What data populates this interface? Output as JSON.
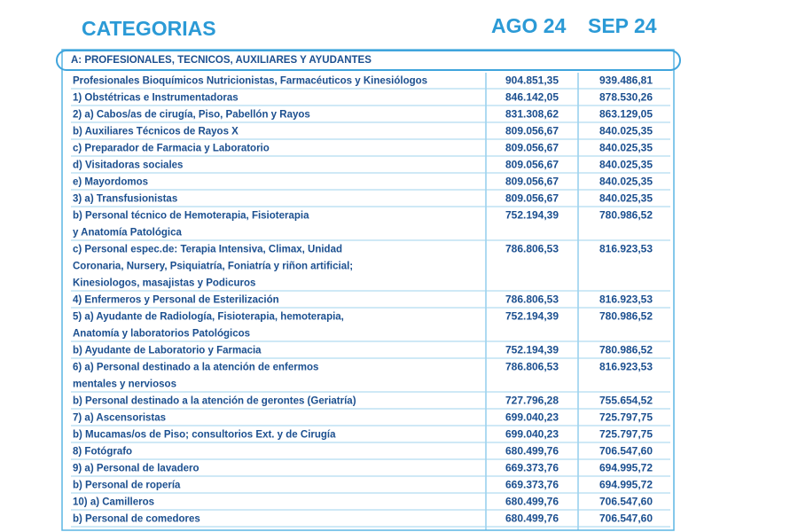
{
  "header": {
    "title": "CATEGORIAS",
    "columns": [
      "AGO 24",
      "SEP 24"
    ]
  },
  "table": {
    "section": "A: PROFESIONALES, TECNICOS, AUXILIARES Y AYUDANTES",
    "rows": [
      {
        "label": [
          "Profesionales Bioquímicos Nutricionistas, Farmacéuticos y Kinesiólogos"
        ],
        "ago": "904.851,35",
        "sep": "939.486,81"
      },
      {
        "label": [
          "1) Obstétricas e Instrumentadoras"
        ],
        "ago": "846.142,05",
        "sep": "878.530,26"
      },
      {
        "label": [
          "2) a) Cabos/as de cirugía, Piso, Pabellón y Rayos"
        ],
        "ago": "831.308,62",
        "sep": "863.129,05"
      },
      {
        "label": [
          "b) Auxiliares Técnicos de Rayos X"
        ],
        "ago": "809.056,67",
        "sep": "840.025,35"
      },
      {
        "label": [
          "c) Preparador de Farmacia y Laboratorio"
        ],
        "ago": "809.056,67",
        "sep": "840.025,35"
      },
      {
        "label": [
          "d) Visitadoras sociales"
        ],
        "ago": "809.056,67",
        "sep": "840.025,35"
      },
      {
        "label": [
          "e) Mayordomos"
        ],
        "ago": "809.056,67",
        "sep": "840.025,35"
      },
      {
        "label": [
          "3) a) Transfusionistas"
        ],
        "ago": "809.056,67",
        "sep": "840.025,35"
      },
      {
        "label": [
          "b) Personal técnico de Hemoterapia, Fisioterapia",
          "y Anatomía Patológica"
        ],
        "ago": "752.194,39",
        "sep": "780.986,52"
      },
      {
        "label": [
          "c) Personal espec.de: Terapia Intensiva, Climax, Unidad",
          "Coronaria, Nursery, Psiquiatría, Foniatría y riñon artificial;",
          "Kinesiologos,  masajistas y  Podicuros"
        ],
        "ago": "786.806,53",
        "sep": "816.923,53"
      },
      {
        "label": [
          "4) Enfermeros y Personal de Esterilización"
        ],
        "ago": "786.806,53",
        "sep": "816.923,53"
      },
      {
        "label": [
          "5) a) Ayudante de Radiología, Fisioterapia, hemoterapia,",
          "Anatomía y laboratorios Patológicos"
        ],
        "ago": "752.194,39",
        "sep": "780.986,52"
      },
      {
        "label": [
          "b) Ayudante de Laboratorio y Farmacia"
        ],
        "ago": "752.194,39",
        "sep": "780.986,52"
      },
      {
        "label": [
          "6) a) Personal destinado a la atención de enfermos",
          "mentales y nerviosos"
        ],
        "ago": "786.806,53",
        "sep": "816.923,53"
      },
      {
        "label": [
          "b) Personal destinado a la atención de gerontes (Geriatría)"
        ],
        "ago": "727.796,28",
        "sep": "755.654,52"
      },
      {
        "label": [
          "7) a) Ascensoristas"
        ],
        "ago": "699.040,23",
        "sep": "725.797,75"
      },
      {
        "label": [
          "b) Mucamas/os  de Piso; consultorios Ext. y de Cirugía"
        ],
        "ago": "699.040,23",
        "sep": "725.797,75"
      },
      {
        "label": [
          "8) Fotógrafo"
        ],
        "ago": "680.499,76",
        "sep": "706.547,60"
      },
      {
        "label": [
          "9) a) Personal de lavadero"
        ],
        "ago": "669.373,76",
        "sep": "694.995,72"
      },
      {
        "label": [
          "b) Personal de ropería"
        ],
        "ago": "669.373,76",
        "sep": "694.995,72"
      },
      {
        "label": [
          "10) a) Camilleros"
        ],
        "ago": "680.499,76",
        "sep": "706.547,60"
      },
      {
        "label": [
          "b) Personal de comedores"
        ],
        "ago": "680.499,76",
        "sep": "706.547,60"
      }
    ]
  }
}
